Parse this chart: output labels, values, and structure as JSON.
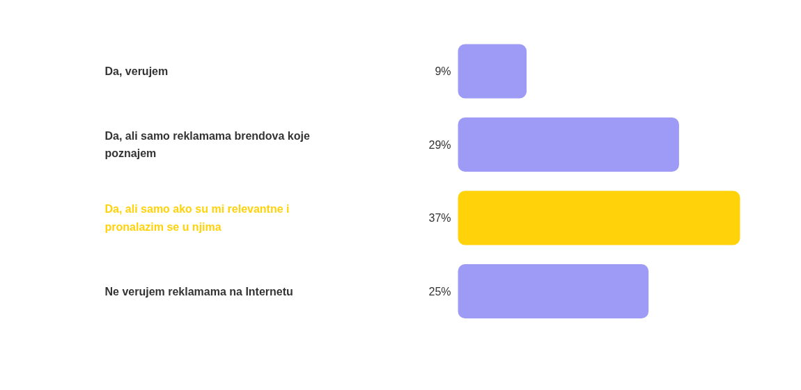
{
  "chart_data": {
    "type": "bar",
    "orientation": "horizontal",
    "categories": [
      "Da, verujem",
      "Da, ali samo reklamama brendova koje poznajem",
      "Da, ali samo ako su mi relevantne i pronalazim se u njima",
      "Ne verujem reklamama na Internetu"
    ],
    "values": [
      9,
      29,
      37,
      25
    ],
    "colors": [
      "#9d9bf6",
      "#9d9bf6",
      "#ffd20a",
      "#9d9bf6"
    ],
    "value_labels": [
      "9%",
      "29%",
      "37%",
      "25%"
    ]
  }
}
